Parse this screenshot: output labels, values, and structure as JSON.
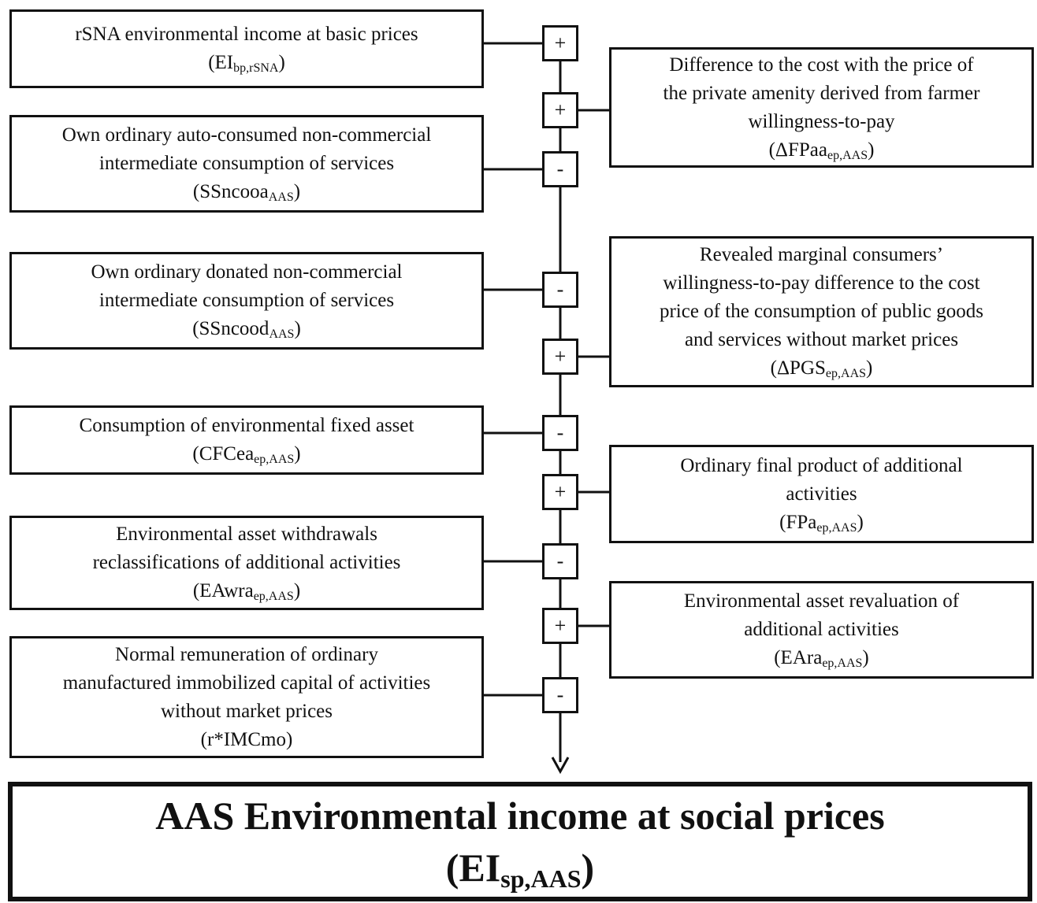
{
  "left_boxes": [
    {
      "lines": [
        "rSNA environmental income at basic prices"
      ],
      "symbol": {
        "main": "(EI",
        "sub": "bp,rSNA",
        "close": ")"
      }
    },
    {
      "lines": [
        "Own ordinary auto-consumed non-commercial",
        "intermediate consumption of services"
      ],
      "symbol": {
        "main": "(SSncooa",
        "sub": "AAS",
        "close": ")"
      }
    },
    {
      "lines": [
        "Own ordinary donated non-commercial",
        "intermediate consumption of services"
      ],
      "symbol": {
        "main": "(SSncood",
        "sub": "AAS",
        "close": ")"
      }
    },
    {
      "lines": [
        "Consumption of environmental fixed asset"
      ],
      "symbol": {
        "main": "(CFCea",
        "sub": "ep,AAS",
        "close": ")"
      }
    },
    {
      "lines": [
        "Environmental asset withdrawals",
        "reclassifications of additional activities"
      ],
      "symbol": {
        "main": "(EAwra",
        "sub": "ep,AAS",
        "close": ")"
      }
    },
    {
      "lines": [
        "Normal remuneration of ordinary",
        "manufactured immobilized capital of activities",
        "without market prices"
      ],
      "symbol": {
        "main": "(r*IMCmo)"
      }
    }
  ],
  "right_boxes": [
    {
      "lines": [
        "Difference to the cost with the price of",
        "the private amenity derived from farmer",
        "willingness-to-pay"
      ],
      "symbol": {
        "main": "(ΔFPaa",
        "sub": "ep,AAS",
        "close": ")"
      }
    },
    {
      "lines": [
        "Revealed marginal consumers’",
        "willingness-to-pay difference to the cost",
        "price of the consumption of public goods",
        "and services without market prices"
      ],
      "symbol": {
        "main": "(ΔPGS",
        "sub": "ep,AAS",
        "close": ")"
      }
    },
    {
      "lines": [
        "Ordinary final product of additional",
        "activities"
      ],
      "symbol": {
        "main": "(FPa",
        "sub": "ep,AAS",
        "close": ")"
      }
    },
    {
      "lines": [
        "Environmental asset revaluation of",
        "additional activities"
      ],
      "symbol": {
        "main": "(EAra",
        "sub": "ep,AAS",
        "close": ")"
      }
    }
  ],
  "operators": [
    "+",
    "+",
    "-",
    "-",
    "+",
    "-",
    "+",
    "-",
    "+",
    "-"
  ],
  "result": {
    "title": "AAS Environmental income at social prices",
    "symbol": {
      "main": "(EI",
      "sub": "sp,AAS",
      "close": ")"
    }
  }
}
